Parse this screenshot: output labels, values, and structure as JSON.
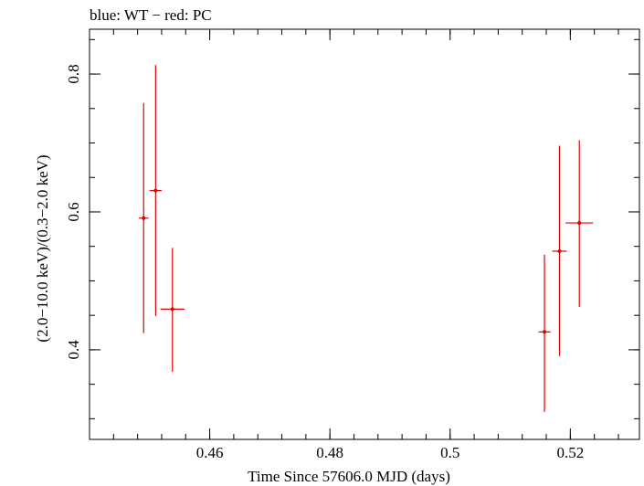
{
  "chart_data": {
    "type": "scatter",
    "title": "blue: WT − red: PC",
    "xlabel": "Time Since 57606.0 MJD (days)",
    "ylabel": "(2.0−10.0 keV)/(0.3−2.0 keV)",
    "xlim": [
      0.44,
      0.5315
    ],
    "ylim": [
      0.27,
      0.865
    ],
    "x_ticks": [
      0.46,
      0.48,
      0.5,
      0.52
    ],
    "x_tick_labels": [
      "0.46",
      "0.48",
      "0.5",
      "0.52"
    ],
    "y_ticks": [
      0.4,
      0.6,
      0.8
    ],
    "y_tick_labels": [
      "0.4",
      "0.6",
      "0.8"
    ],
    "grid": false,
    "series": [
      {
        "color": "#e00000",
        "points": [
          {
            "x": 0.449,
            "y": 0.591,
            "xerr": 0.0008,
            "ylo": 0.424,
            "yhi": 0.758
          },
          {
            "x": 0.451,
            "y": 0.631,
            "xerr": 0.001,
            "ylo": 0.449,
            "yhi": 0.813
          },
          {
            "x": 0.4538,
            "y": 0.459,
            "xerr": 0.002,
            "ylo": 0.368,
            "yhi": 0.548
          },
          {
            "x": 0.5157,
            "y": 0.426,
            "xerr": 0.001,
            "ylo": 0.31,
            "yhi": 0.538
          },
          {
            "x": 0.5182,
            "y": 0.543,
            "xerr": 0.0012,
            "ylo": 0.391,
            "yhi": 0.696
          },
          {
            "x": 0.5215,
            "y": 0.584,
            "xerr": 0.0023,
            "ylo": 0.462,
            "yhi": 0.704
          }
        ]
      }
    ]
  }
}
